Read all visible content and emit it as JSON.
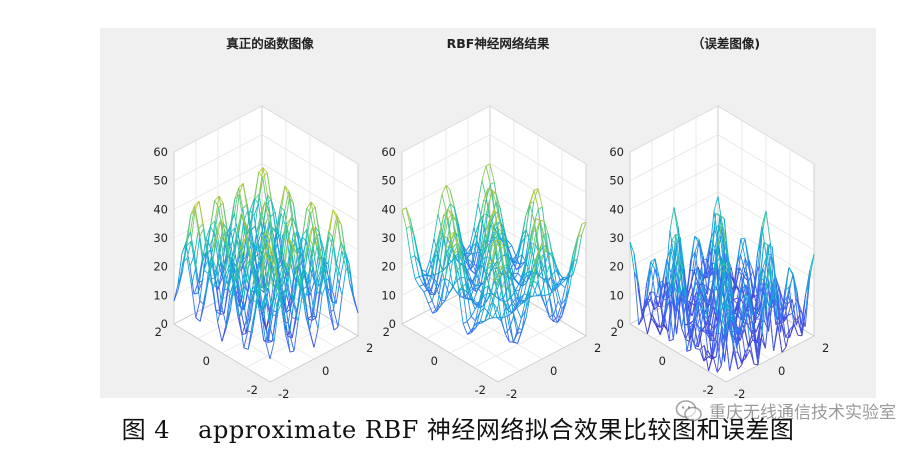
{
  "chart_data": [
    {
      "type": "surface",
      "title": "真正的函数图像",
      "zlim": [
        0,
        60
      ],
      "z_ticks": [
        "60",
        "50",
        "40",
        "30",
        "20",
        "10",
        "0"
      ],
      "x_ticks": [
        "-2",
        "0",
        "2"
      ],
      "y_ticks": [
        "-2",
        "0",
        "2"
      ],
      "colormap": "parula",
      "surface": "z = 20 + x^2 - 10cos(2πx) + y^2 - 10cos(2πy)"
    },
    {
      "type": "surface",
      "title": "RBF神经网络结果",
      "zlim": [
        0,
        60
      ],
      "z_ticks": [
        "60",
        "50",
        "40",
        "30",
        "20",
        "10",
        "0"
      ],
      "x_ticks": [
        "-2",
        "0",
        "2"
      ],
      "y_ticks": [
        "-2",
        "0",
        "2"
      ],
      "colormap": "parula"
    },
    {
      "type": "surface",
      "title": "（误差图像)",
      "zlim": [
        0,
        60
      ],
      "z_ticks": [
        "60",
        "50",
        "40",
        "30",
        "20",
        "10",
        "0"
      ],
      "x_ticks": [
        "-2",
        "0",
        "2"
      ],
      "y_ticks": [
        "-2",
        "0",
        "2"
      ],
      "colormap": "parula"
    }
  ],
  "caption": {
    "figure_label": "图 4",
    "text": "approximate RBF 神经网络拟合效果比较图和误差图"
  },
  "watermark": {
    "text": "重庆无线通信技术实验室"
  }
}
